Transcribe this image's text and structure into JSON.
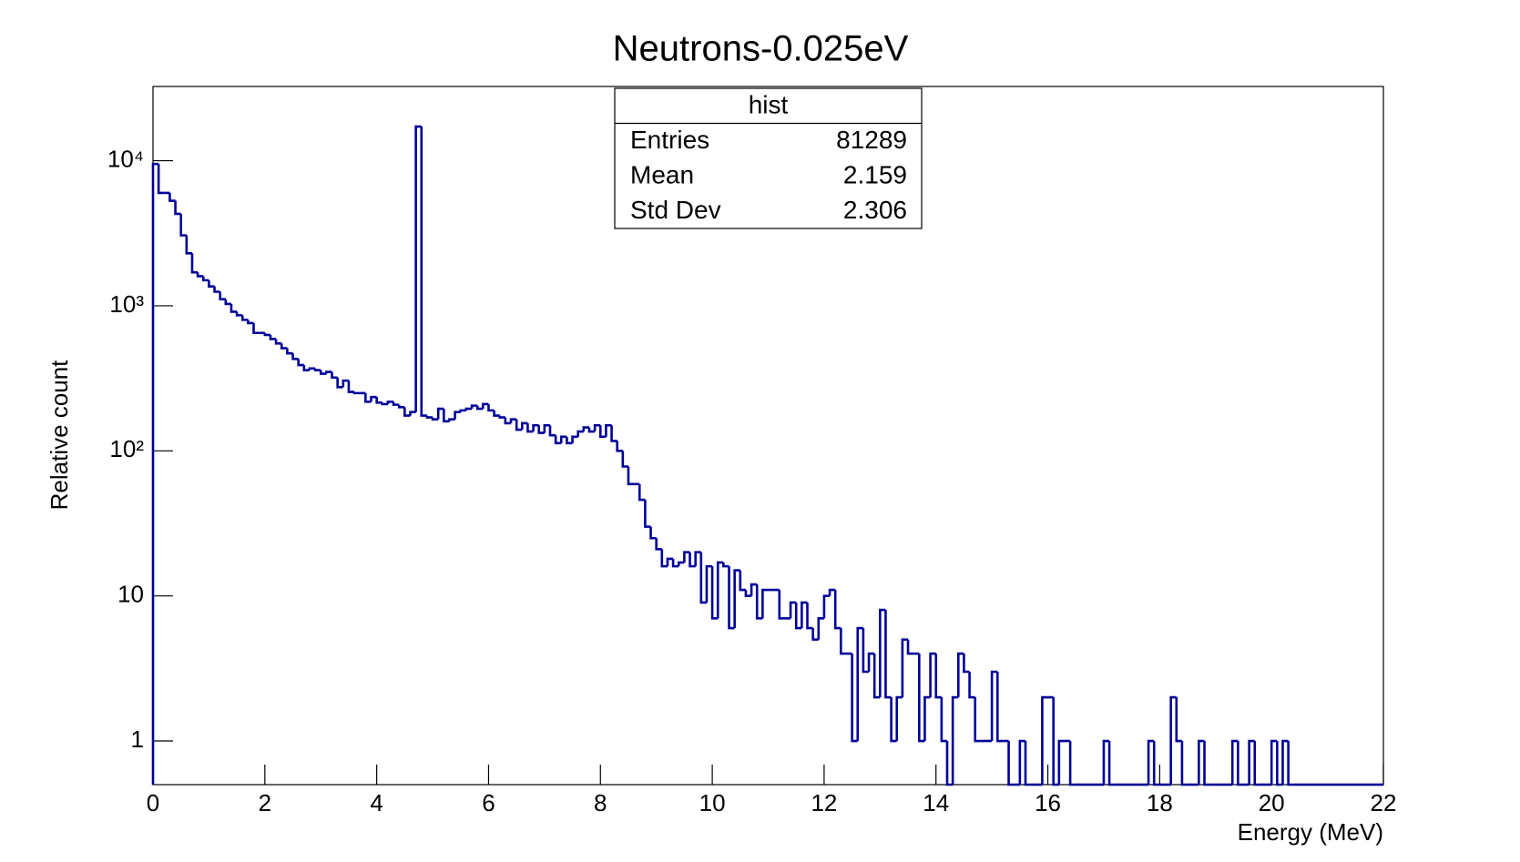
{
  "chart_data": {
    "type": "histogram",
    "title": "Neutrons-0.025eV",
    "x_label": "Energy (MeV)",
    "y_label": "Relative count",
    "color": "#000099",
    "log_y": true,
    "xlim": [
      0,
      22
    ],
    "xticks": [
      0,
      2,
      4,
      6,
      8,
      10,
      12,
      14,
      16,
      18,
      20,
      22
    ],
    "ylim": [
      0.5,
      32500
    ],
    "yticks": [
      1,
      10,
      {
        "value": 100,
        "label": "10²"
      },
      {
        "value": 1000,
        "label": "10³"
      },
      {
        "value": 10000,
        "label": "10⁴"
      }
    ],
    "bins": [
      0,
      0.1,
      0.2,
      0.3,
      0.4,
      0.5,
      0.6,
      0.7,
      0.8,
      0.9,
      1,
      1.1,
      1.2,
      1.3,
      1.4,
      1.5,
      1.6,
      1.7,
      1.8,
      1.9,
      2,
      2.1,
      2.2,
      2.3,
      2.4,
      2.5,
      2.6,
      2.7,
      2.8,
      2.9,
      3,
      3.1,
      3.2,
      3.3,
      3.4,
      3.5,
      3.6,
      3.7,
      3.8,
      3.9,
      4,
      4.1,
      4.2,
      4.3,
      4.4,
      4.5,
      4.6,
      4.7,
      4.8,
      4.9,
      5,
      5.1,
      5.2,
      5.3,
      5.4,
      5.5,
      5.6,
      5.7,
      5.8,
      5.9,
      6,
      6.1,
      6.2,
      6.3,
      6.4,
      6.5,
      6.6,
      6.7,
      6.8,
      6.9,
      7,
      7.1,
      7.2,
      7.3,
      7.4,
      7.5,
      7.6,
      7.7,
      7.8,
      7.9,
      8,
      8.1,
      8.2,
      8.3,
      8.4,
      8.5,
      8.6,
      8.7,
      8.8,
      8.9,
      9,
      9.1,
      9.2,
      9.3,
      9.4,
      9.5,
      9.6,
      9.7,
      9.8,
      9.9,
      10,
      10.1,
      10.2,
      10.3,
      10.4,
      10.5,
      10.6,
      10.7,
      10.8,
      10.9,
      11,
      11.1,
      11.2,
      11.3,
      11.4,
      11.5,
      11.6,
      11.7,
      11.8,
      11.9,
      12,
      12.1,
      12.2,
      12.3,
      12.4,
      12.5,
      12.6,
      12.7,
      12.8,
      12.9,
      13,
      13.1,
      13.2,
      13.3,
      13.4,
      13.5,
      13.6,
      13.7,
      13.8,
      13.9,
      14,
      14.1,
      14.2,
      14.3,
      14.4,
      14.5,
      14.6,
      14.7,
      14.8,
      14.9,
      15,
      15.1,
      15.2,
      15.3,
      15.4,
      15.5,
      15.6,
      15.7,
      15.8,
      15.9,
      16,
      16.1,
      16.2,
      16.3,
      16.4,
      16.5,
      16.6,
      16.7,
      16.8,
      16.9,
      17,
      17.1,
      17.2,
      17.3,
      17.4,
      17.5,
      17.6,
      17.7,
      17.8,
      17.9,
      18,
      18.1,
      18.2,
      18.3,
      18.4,
      18.5,
      18.6,
      18.7,
      18.8,
      18.9,
      19,
      19.1,
      19.2,
      19.3,
      19.4,
      19.5,
      19.6,
      19.7,
      19.8,
      19.9,
      20,
      20.1,
      20.2,
      20.3,
      20.4,
      20.5,
      20.6,
      20.7,
      20.8,
      20.9,
      21,
      21.1,
      21.2,
      21.3,
      21.4,
      21.5,
      21.6,
      21.7,
      21.8,
      21.9,
      22
    ],
    "values": [
      9500,
      6000,
      6000,
      5300,
      4300,
      3060,
      2300,
      1700,
      1600,
      1500,
      1360,
      1250,
      1110,
      1030,
      910,
      860,
      800,
      760,
      650,
      650,
      630,
      590,
      550,
      510,
      470,
      430,
      390,
      360,
      370,
      360,
      340,
      350,
      320,
      275,
      305,
      255,
      250,
      250,
      218,
      235,
      215,
      210,
      218,
      208,
      200,
      175,
      185,
      17200,
      175,
      170,
      165,
      195,
      160,
      165,
      185,
      190,
      195,
      205,
      195,
      210,
      190,
      175,
      170,
      155,
      165,
      140,
      155,
      136,
      150,
      133,
      150,
      128,
      113,
      125,
      113,
      125,
      136,
      145,
      136,
      150,
      125,
      150,
      117,
      100,
      78,
      59,
      59,
      46,
      30,
      25,
      21,
      16,
      18,
      16,
      17,
      20,
      16,
      20,
      9,
      16,
      7,
      17,
      16,
      6,
      15,
      11,
      10,
      12,
      7,
      11,
      11,
      11,
      7,
      7,
      9,
      6,
      9,
      6,
      5,
      7,
      10,
      11,
      6,
      4,
      4,
      1,
      6,
      3,
      4,
      2,
      8,
      2,
      1,
      2,
      5,
      4,
      4,
      1,
      2,
      4,
      2,
      1,
      0,
      2,
      4,
      3,
      2,
      1,
      1,
      1,
      3,
      1,
      1,
      0,
      0,
      1,
      0,
      0,
      0,
      2,
      2,
      0,
      1,
      1,
      0,
      0,
      0,
      0,
      0,
      0,
      1,
      0,
      0,
      0,
      0,
      0,
      0,
      0,
      1,
      0,
      0,
      0,
      2,
      1,
      0,
      0,
      0,
      1,
      0,
      0,
      0,
      0,
      0,
      1,
      0,
      0,
      1,
      0,
      0,
      0,
      1,
      0,
      1,
      0,
      0,
      0,
      0,
      0,
      0,
      0,
      0,
      0,
      0,
      0,
      0,
      0,
      0,
      0,
      0,
      0
    ],
    "stats": {
      "title": "hist",
      "rows": [
        [
          "Entries",
          81289
        ],
        [
          "Mean",
          2.159
        ],
        [
          "Std Dev",
          2.306
        ]
      ]
    }
  }
}
